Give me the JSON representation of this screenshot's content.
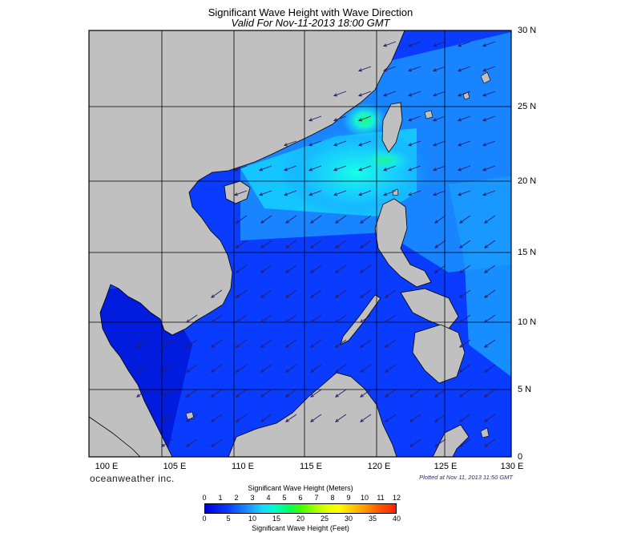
{
  "title": "Significant Wave Height with Wave Direction",
  "subtitle": "Valid For Nov-11-2013 18:00 GMT",
  "lat_labels": [
    "30 N",
    "25 N",
    "20 N",
    "15 N",
    "10 N",
    "5 N",
    "0"
  ],
  "lon_labels": [
    "100 E",
    "105 E",
    "110 E",
    "115 E",
    "120 E",
    "125 E",
    "130 E"
  ],
  "brand": "oceanweather inc.",
  "plotted_at": "Plotted at Nov 11, 2013 11:50 GMT",
  "colorbar": {
    "meters_title": "Significant Wave Height (Meters)",
    "meters_ticks": [
      "0",
      "1",
      "2",
      "3",
      "4",
      "5",
      "6",
      "7",
      "8",
      "9",
      "10",
      "11",
      "12"
    ],
    "feet_title": "Significant Wave Height (Feet)",
    "feet_ticks": [
      "0",
      "5",
      "10",
      "15",
      "20",
      "25",
      "30",
      "35",
      "40"
    ]
  },
  "colors": {
    "land": "#c0c0c0",
    "ocean_low": "#0a3cff",
    "ocean_mid": "#1a8cff",
    "ocean_high": "#18e8ff",
    "grid": "#000000",
    "arrow": "#2a1a6a"
  },
  "map_data": {
    "type": "wave_height_map",
    "lon_range": [
      100,
      130
    ],
    "lat_range": [
      0,
      30
    ],
    "gridlines": "every 5 degrees",
    "wave_direction": "from northeast toward southwest",
    "max_wave_height_m_approx": 5
  }
}
